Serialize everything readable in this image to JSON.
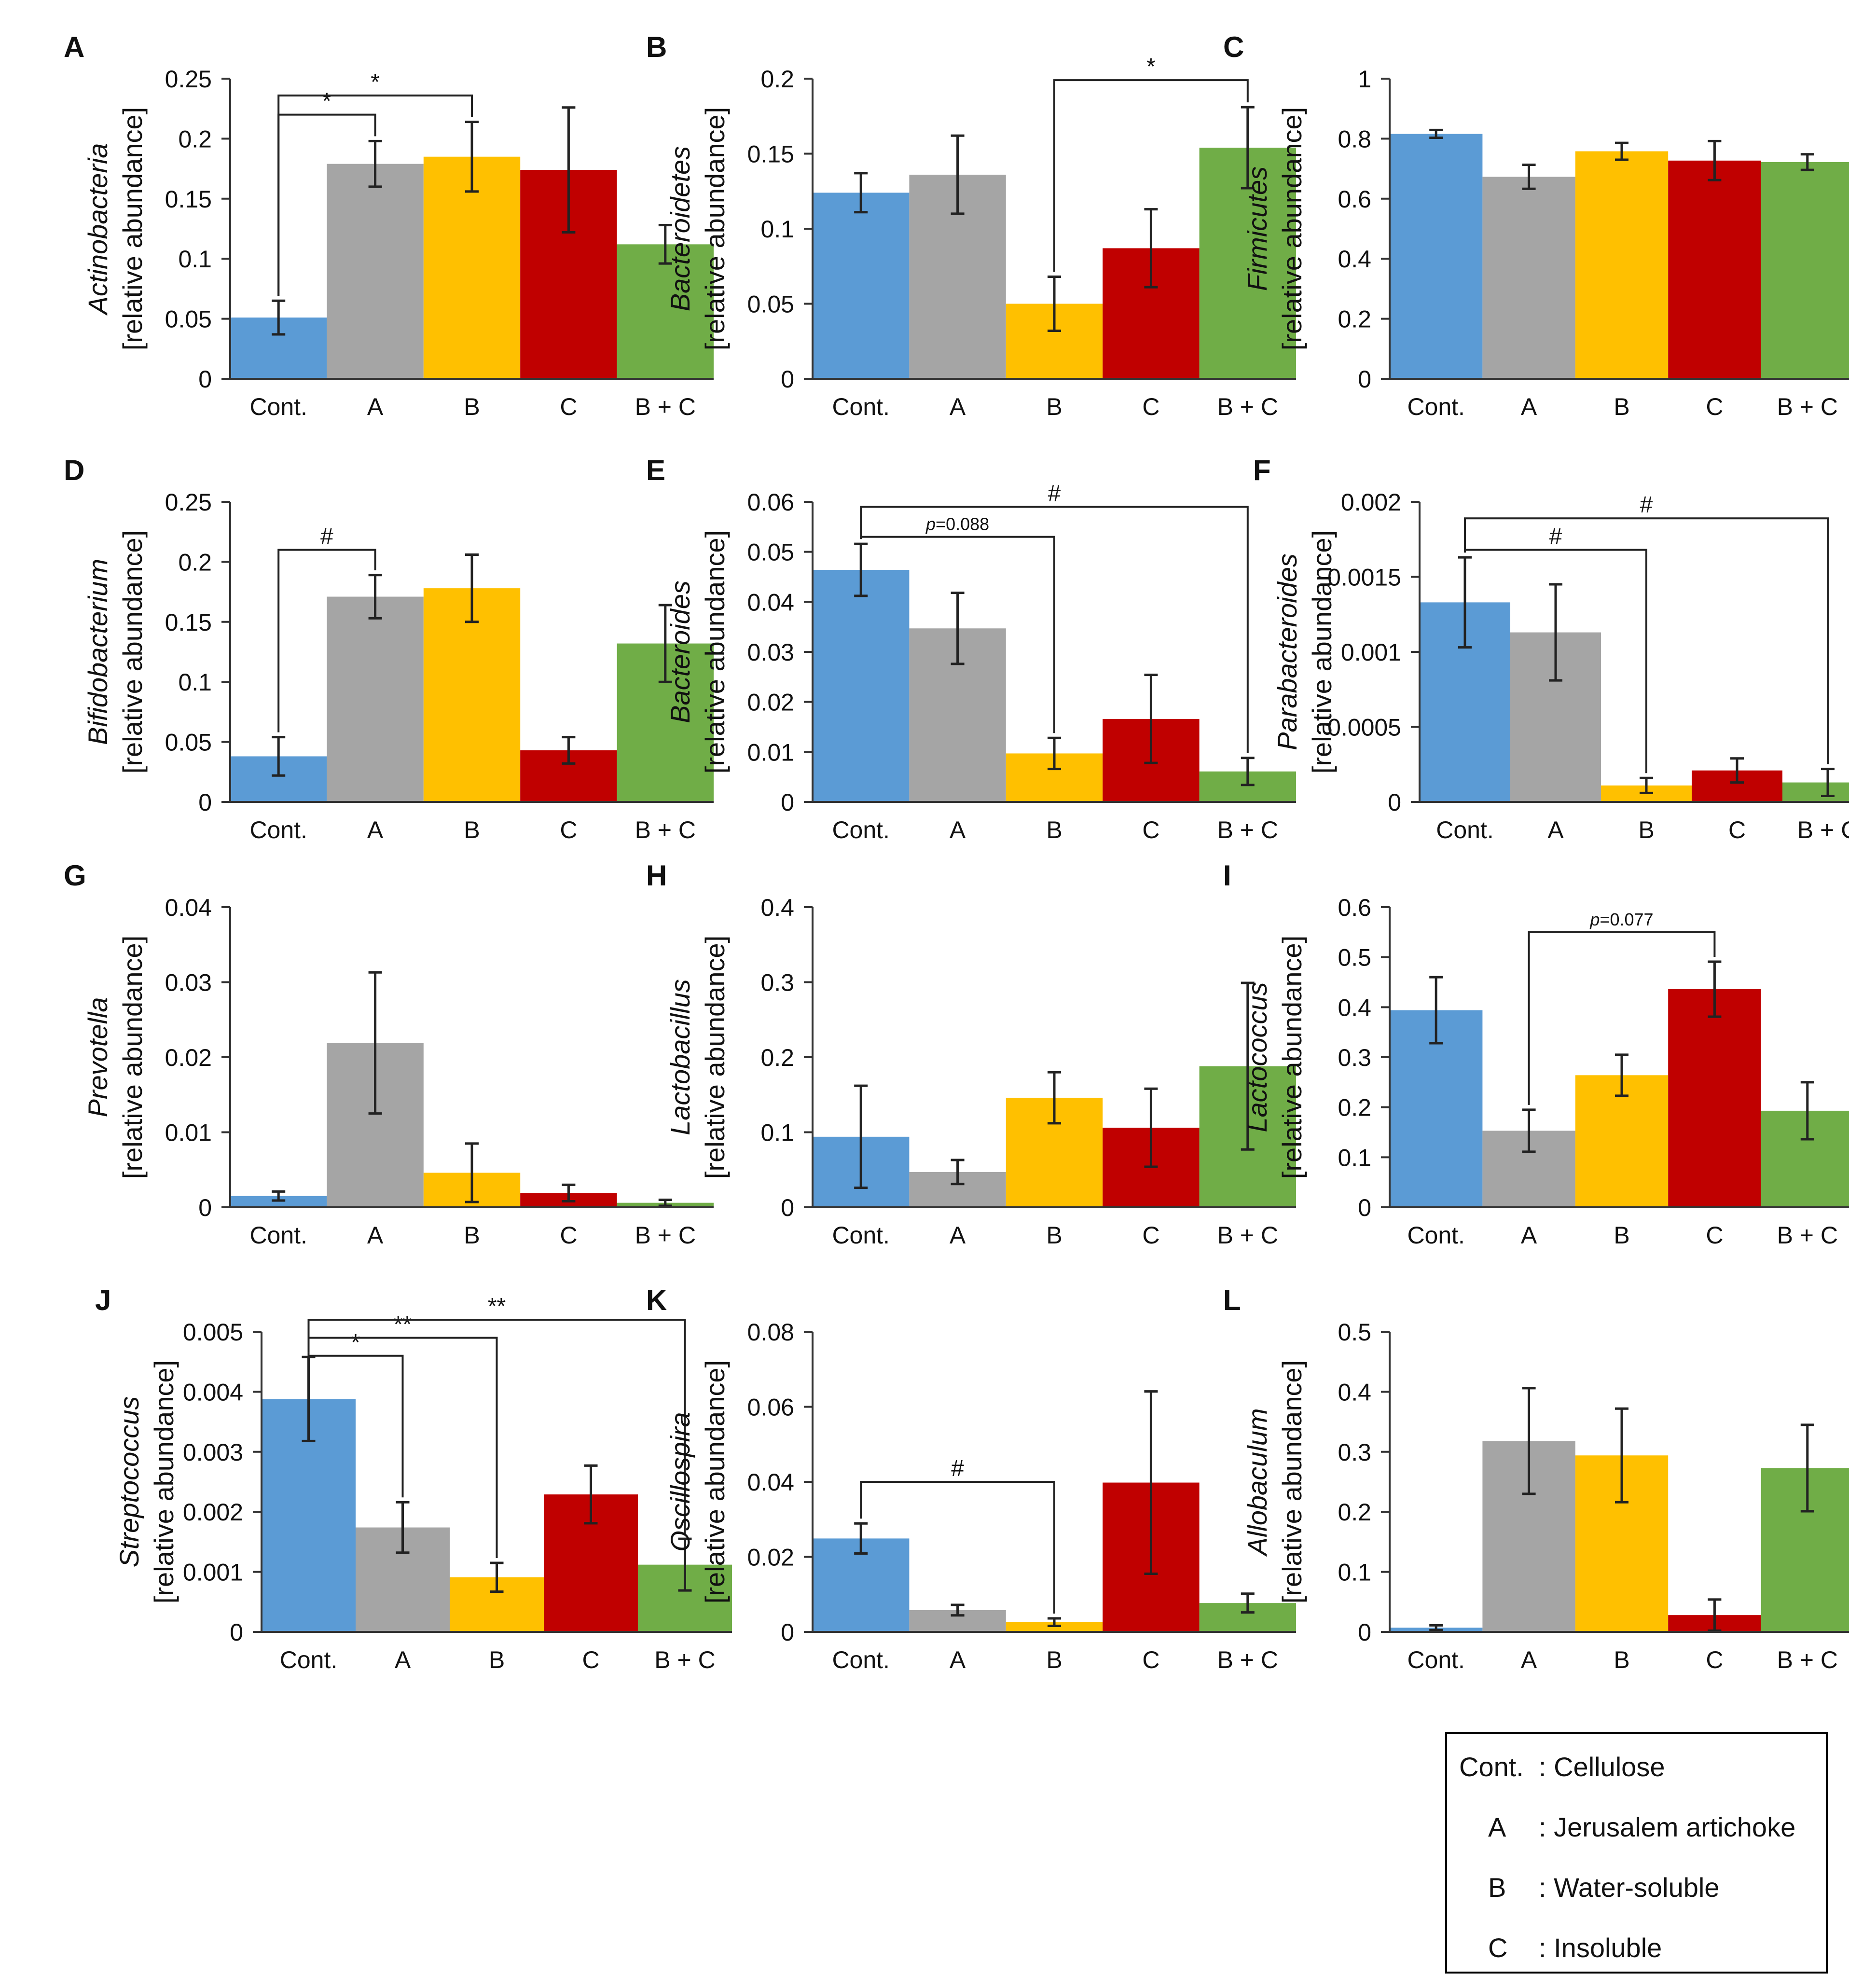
{
  "colors": {
    "Cont.": "#5b9bd5",
    "A": "#a5a5a5",
    "B": "#ffc000",
    "C": "#c00000",
    "B + C": "#70ad47"
  },
  "ylabel_unit": "[relative abundance]",
  "chart_data": [
    {
      "type": "bar",
      "panel": "A",
      "title": "Actinobacteria",
      "categories": [
        "Cont.",
        "A",
        "B",
        "C",
        "B + C"
      ],
      "values": [
        0.051,
        0.179,
        0.185,
        0.174,
        0.112
      ],
      "errors": [
        0.014,
        0.019,
        0.029,
        0.052,
        0.016
      ],
      "ylim": [
        0,
        0.25
      ],
      "ticks": [
        "0",
        "0.05",
        "0.1",
        "0.15",
        "0.2",
        "0.25"
      ],
      "ylabel": "[relative abundance]",
      "significance": [
        {
          "from": 0,
          "to": 1,
          "label": "*",
          "level": 0.22
        },
        {
          "from": 0,
          "to": 2,
          "label": "*",
          "level": 0.236
        }
      ]
    },
    {
      "type": "bar",
      "panel": "B",
      "title": "Bacteroidetes",
      "categories": [
        "Cont.",
        "A",
        "B",
        "C",
        "B + C"
      ],
      "values": [
        0.124,
        0.136,
        0.05,
        0.087,
        0.154
      ],
      "errors": [
        0.013,
        0.026,
        0.018,
        0.026,
        0.027
      ],
      "ylim": [
        0,
        0.2
      ],
      "ticks": [
        "0",
        "0.05",
        "0.1",
        "0.15",
        "0.2"
      ],
      "ylabel": "[relative abundance]",
      "significance": [
        {
          "from": 2,
          "to": 4,
          "label": "*",
          "level": 0.199
        }
      ]
    },
    {
      "type": "bar",
      "panel": "C",
      "title": "Firmicutes",
      "categories": [
        "Cont.",
        "A",
        "B",
        "C",
        "B + C"
      ],
      "values": [
        0.816,
        0.673,
        0.758,
        0.727,
        0.722
      ],
      "errors": [
        0.013,
        0.04,
        0.028,
        0.065,
        0.026
      ],
      "ylim": [
        0,
        1
      ],
      "ticks": [
        "0",
        "0.2",
        "0.4",
        "0.6",
        "0.8",
        "1"
      ],
      "ylabel": "[relative abundance]",
      "significance": []
    },
    {
      "type": "bar",
      "panel": "D",
      "title": "Bifidobacterium",
      "categories": [
        "Cont.",
        "A",
        "B",
        "C",
        "B + C"
      ],
      "values": [
        0.038,
        0.171,
        0.178,
        0.043,
        0.132
      ],
      "errors": [
        0.016,
        0.018,
        0.028,
        0.011,
        0.032
      ],
      "ylim": [
        0,
        0.25
      ],
      "ticks": [
        "0",
        "0.05",
        "0.1",
        "0.15",
        "0.2",
        "0.25"
      ],
      "ylabel": "[relative abundance]",
      "significance": [
        {
          "from": 0,
          "to": 1,
          "label": "#",
          "level": 0.21
        }
      ]
    },
    {
      "type": "bar",
      "panel": "E",
      "title": "Bacteroides",
      "categories": [
        "Cont.",
        "A",
        "B",
        "C",
        "B + C"
      ],
      "values": [
        0.0464,
        0.0347,
        0.0097,
        0.0166,
        0.0061
      ],
      "errors": [
        0.0052,
        0.0071,
        0.0031,
        0.0088,
        0.0027
      ],
      "ylim": [
        0,
        0.06
      ],
      "ticks": [
        "0",
        "0.01",
        "0.02",
        "0.03",
        "0.04",
        "0.05",
        "0.06"
      ],
      "ylabel": "[relative abundance]",
      "significance": [
        {
          "from": 0,
          "to": 2,
          "label": "p=0.088",
          "level": 0.053
        },
        {
          "from": 0,
          "to": 4,
          "label": "#",
          "level": 0.059
        }
      ]
    },
    {
      "type": "bar",
      "panel": "F",
      "title": "Parabacteroides",
      "categories": [
        "Cont.",
        "A",
        "B",
        "C",
        "B + C"
      ],
      "values": [
        0.00133,
        0.00113,
        0.00011,
        0.00021,
        0.00013
      ],
      "errors": [
        0.0003,
        0.00032,
        5e-05,
        8e-05,
        9e-05
      ],
      "ylim": [
        0,
        0.002
      ],
      "ticks": [
        "0",
        "0.0005",
        "0.001",
        "0.0015",
        "0.002"
      ],
      "ylabel": "[relative abundance]",
      "significance": [
        {
          "from": 0,
          "to": 2,
          "label": "#",
          "level": 0.00168
        },
        {
          "from": 0,
          "to": 4,
          "label": "#",
          "level": 0.00189
        }
      ]
    },
    {
      "type": "bar",
      "panel": "G",
      "title": "Prevotella",
      "categories": [
        "Cont.",
        "A",
        "B",
        "C",
        "B + C"
      ],
      "values": [
        0.0015,
        0.0219,
        0.0046,
        0.0019,
        0.0006
      ],
      "errors": [
        0.0006,
        0.0094,
        0.0039,
        0.0011,
        0.0004
      ],
      "ylim": [
        0,
        0.04
      ],
      "ticks": [
        "0",
        "0.01",
        "0.02",
        "0.03",
        "0.04"
      ],
      "ylabel": "[relative abundance]",
      "significance": []
    },
    {
      "type": "bar",
      "panel": "H",
      "title": "Lactobacillus",
      "categories": [
        "Cont.",
        "A",
        "B",
        "C",
        "B + C"
      ],
      "values": [
        0.094,
        0.047,
        0.146,
        0.106,
        0.188
      ],
      "errors": [
        0.068,
        0.016,
        0.034,
        0.052,
        0.111
      ],
      "ylim": [
        0,
        0.4
      ],
      "ticks": [
        "0",
        "0.1",
        "0.2",
        "0.3",
        "0.4"
      ],
      "ylabel": "[relative abundance]",
      "significance": []
    },
    {
      "type": "bar",
      "panel": "I",
      "title": "Lactococcus",
      "categories": [
        "Cont.",
        "A",
        "B",
        "C",
        "B + C"
      ],
      "values": [
        0.394,
        0.153,
        0.264,
        0.436,
        0.193
      ],
      "errors": [
        0.066,
        0.042,
        0.041,
        0.055,
        0.057
      ],
      "ylim": [
        0,
        0.6
      ],
      "ticks": [
        "0",
        "0.1",
        "0.2",
        "0.3",
        "0.4",
        "0.5",
        "0.6"
      ],
      "ylabel": "[relative abundance]",
      "significance": [
        {
          "from": 1,
          "to": 3,
          "label": "p=0.077",
          "level": 0.55
        }
      ]
    },
    {
      "type": "bar",
      "panel": "J",
      "title": "Streptococcus",
      "categories": [
        "Cont.",
        "A",
        "B",
        "C",
        "B + C"
      ],
      "values": [
        0.00388,
        0.00174,
        0.00091,
        0.00229,
        0.00112
      ],
      "errors": [
        0.0007,
        0.00042,
        0.00024,
        0.00048,
        0.00043
      ],
      "ylim": [
        0,
        0.005
      ],
      "ticks": [
        "0",
        "0.001",
        "0.002",
        "0.003",
        "0.004",
        "0.005"
      ],
      "ylabel": "[relative abundance]",
      "significance": [
        {
          "from": 0,
          "to": 1,
          "label": "*",
          "level": 0.0046
        },
        {
          "from": 0,
          "to": 2,
          "label": "**",
          "level": 0.0049
        },
        {
          "from": 0,
          "to": 4,
          "label": "**",
          "level": 0.0052
        }
      ]
    },
    {
      "type": "bar",
      "panel": "K",
      "title": "Oscillospira",
      "categories": [
        "Cont.",
        "A",
        "B",
        "C",
        "B + C"
      ],
      "values": [
        0.0249,
        0.0058,
        0.0026,
        0.0398,
        0.0077
      ],
      "errors": [
        0.004,
        0.0014,
        0.001,
        0.0243,
        0.0025
      ],
      "ylim": [
        0,
        0.08
      ],
      "ticks": [
        "0",
        "0.02",
        "0.04",
        "0.06",
        "0.08"
      ],
      "ylabel": "[relative abundance]",
      "significance": [
        {
          "from": 0,
          "to": 2,
          "label": "#",
          "level": 0.04
        }
      ]
    },
    {
      "type": "bar",
      "panel": "L",
      "title": "Allobaculum",
      "categories": [
        "Cont.",
        "A",
        "B",
        "C",
        "B + C"
      ],
      "values": [
        0.007,
        0.318,
        0.294,
        0.028,
        0.273
      ],
      "errors": [
        0.004,
        0.088,
        0.078,
        0.026,
        0.072
      ],
      "ylim": [
        0,
        0.5
      ],
      "ticks": [
        "0",
        "0.1",
        "0.2",
        "0.3",
        "0.4",
        "0.5"
      ],
      "ylabel": "[relative abundance]",
      "significance": []
    }
  ],
  "legend": [
    {
      "code": "Cont.",
      "desc": ": Cellulose"
    },
    {
      "code": "A",
      "desc": ": Jerusalem artichoke"
    },
    {
      "code": "B",
      "desc": ": Water-soluble"
    },
    {
      "code": "C",
      "desc": ": Insoluble"
    }
  ]
}
